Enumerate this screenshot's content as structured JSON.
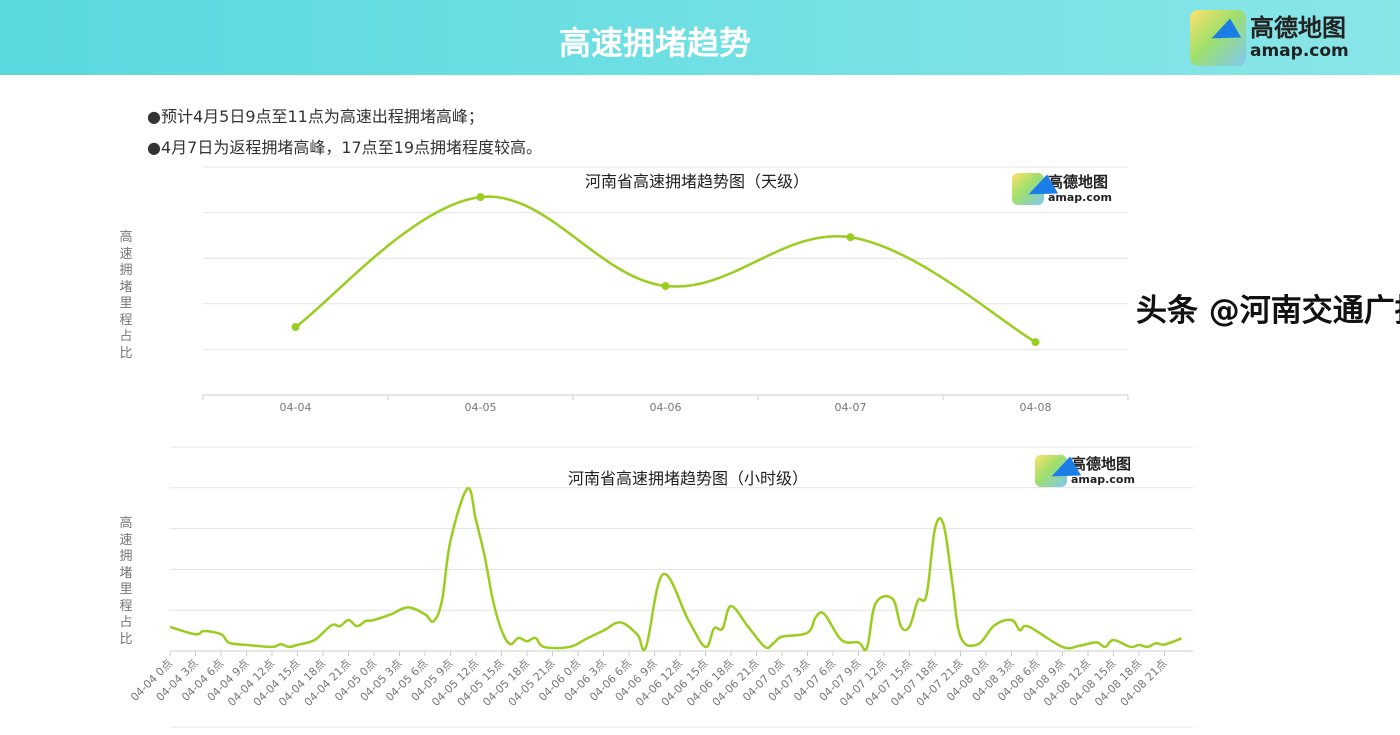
{
  "header": {
    "title": "高速拥堵趋势",
    "logo": {
      "cn": "高德地图",
      "en": "amap.com"
    }
  },
  "bullets": [
    "●预计4月5日9点至11点为高速出程拥堵高峰；",
    "●4月7日为返程拥堵高峰，17点至19点拥堵程度较高。"
  ],
  "colors": {
    "line": "#9acd1f",
    "grid": "#e3e3e3",
    "header": "#5ad8de"
  },
  "watermark": "头条 @河南交通广播",
  "chart_data": [
    {
      "type": "line",
      "title": "河南省高速拥堵趋势图（天级）",
      "ylabel": "高速拥堵里程占比",
      "y_tick_labels_shown": false,
      "ylim": [
        0,
        5
      ],
      "grid": true,
      "markers": true,
      "smooth": true,
      "categories": [
        "04-04",
        "04-05",
        "04-06",
        "04-07",
        "04-08"
      ],
      "values": [
        1.49,
        4.34,
        2.39,
        3.46,
        1.16
      ],
      "logo": {
        "cn": "高德地图",
        "en": "amap.com"
      }
    },
    {
      "type": "line",
      "title": "河南省高速拥堵趋势图（小时级）",
      "ylabel": "高速拥堵里程占比",
      "y_tick_labels_shown": false,
      "ylim": [
        0,
        5
      ],
      "grid": true,
      "smooth": true,
      "x_tick_labels": [
        "04-04 0点",
        "04-04 3点",
        "04-04 6点",
        "04-04 9点",
        "04-04 12点",
        "04-04 15点",
        "04-04 18点",
        "04-04 21点",
        "04-05 0点",
        "04-05 3点",
        "04-05 6点",
        "04-05 9点",
        "04-05 12点",
        "04-05 15点",
        "04-05 18点",
        "04-05 21点",
        "04-06 0点",
        "04-06 3点",
        "04-06 6点",
        "04-06 9点",
        "04-06 12点",
        "04-06 15点",
        "04-06 18点",
        "04-06 21点",
        "04-07 0点",
        "04-07 3点",
        "04-07 6点",
        "04-07 9点",
        "04-07 12点",
        "04-07 15点",
        "04-07 18点",
        "04-07 21点",
        "04-08 0点",
        "04-08 3点",
        "04-08 6点",
        "04-08 9点",
        "04-08 12点",
        "04-08 15点",
        "04-08 18点",
        "04-08 21点"
      ],
      "points": [
        [
          "04-04 0点",
          0.59
        ],
        [
          "04-04 3点",
          0.41
        ],
        [
          "04-04 4点",
          0.49
        ],
        [
          "04-04 6点",
          0.41
        ],
        [
          "04-04 7点",
          0.2
        ],
        [
          "04-04 9点",
          0.15
        ],
        [
          "04-04 12点",
          0.1
        ],
        [
          "04-04 13点",
          0.17
        ],
        [
          "04-04 14点",
          0.1
        ],
        [
          "04-04 15点",
          0.15
        ],
        [
          "04-04 17点",
          0.27
        ],
        [
          "04-04 19点",
          0.63
        ],
        [
          "04-04 20点",
          0.61
        ],
        [
          "04-04 21点",
          0.76
        ],
        [
          "04-04 22点",
          0.61
        ],
        [
          "04-04 23点",
          0.73
        ],
        [
          "04-05 0点",
          0.76
        ],
        [
          "04-05 2点",
          0.9
        ],
        [
          "04-05 4点",
          1.07
        ],
        [
          "04-05 6点",
          0.9
        ],
        [
          "04-05 7点",
          0.73
        ],
        [
          "04-05 8点",
          1.24
        ],
        [
          "04-05 9点",
          2.7
        ],
        [
          "04-05 11点",
          3.98
        ],
        [
          "04-05 12点",
          3.2
        ],
        [
          "04-05 13点",
          2.34
        ],
        [
          "04-05 14点",
          1.24
        ],
        [
          "04-05 15点",
          0.51
        ],
        [
          "04-05 16点",
          0.17
        ],
        [
          "04-05 17点",
          0.32
        ],
        [
          "04-05 18点",
          0.24
        ],
        [
          "04-05 19点",
          0.32
        ],
        [
          "04-05 20点",
          0.1
        ],
        [
          "04-05 23点",
          0.1
        ],
        [
          "04-06 1点",
          0.3
        ],
        [
          "04-06 3点",
          0.5
        ],
        [
          "04-06 5点",
          0.7
        ],
        [
          "04-06 7点",
          0.4
        ],
        [
          "04-06 8点",
          0.1
        ],
        [
          "04-06 10点",
          1.88
        ],
        [
          "04-06 13点",
          0.75
        ],
        [
          "04-06 15点",
          0.1
        ],
        [
          "04-06 16点",
          0.55
        ],
        [
          "04-06 17点",
          0.55
        ],
        [
          "04-06 18点",
          1.1
        ],
        [
          "04-06 20点",
          0.6
        ],
        [
          "04-06 22点",
          0.1
        ],
        [
          "04-06 23点",
          0.19
        ],
        [
          "04-07 0点",
          0.35
        ],
        [
          "04-07 3点",
          0.45
        ],
        [
          "04-07 4点",
          0.84
        ],
        [
          "04-07 5点",
          0.9
        ],
        [
          "04-07 7点",
          0.27
        ],
        [
          "04-07 9点",
          0.21
        ],
        [
          "04-07 10点",
          0.08
        ],
        [
          "04-07 11点",
          1.16
        ],
        [
          "04-07 13点",
          1.28
        ],
        [
          "04-07 14点",
          0.6
        ],
        [
          "04-07 15点",
          0.6
        ],
        [
          "04-07 16点",
          1.24
        ],
        [
          "04-07 17点",
          1.37
        ],
        [
          "04-07 18点",
          3.0
        ],
        [
          "04-07 19点",
          3.1
        ],
        [
          "04-07 20点",
          1.73
        ],
        [
          "04-07 21点",
          0.35
        ],
        [
          "04-07 23点",
          0.16
        ],
        [
          "04-08 1点",
          0.63
        ],
        [
          "04-08 3点",
          0.76
        ],
        [
          "04-08 4点",
          0.51
        ],
        [
          "04-08 5点",
          0.6
        ],
        [
          "04-08 9点",
          0.1
        ],
        [
          "04-08 11点",
          0.13
        ],
        [
          "04-08 13点",
          0.21
        ],
        [
          "04-08 14点",
          0.1
        ],
        [
          "04-08 15点",
          0.27
        ],
        [
          "04-08 17点",
          0.1
        ],
        [
          "04-08 18点",
          0.15
        ],
        [
          "04-08 19点",
          0.1
        ],
        [
          "04-08 20点",
          0.19
        ],
        [
          "04-08 21点",
          0.16
        ],
        [
          "04-08 23点",
          0.31
        ]
      ],
      "logo": {
        "cn": "高德地图",
        "en": "amap.com"
      }
    }
  ]
}
